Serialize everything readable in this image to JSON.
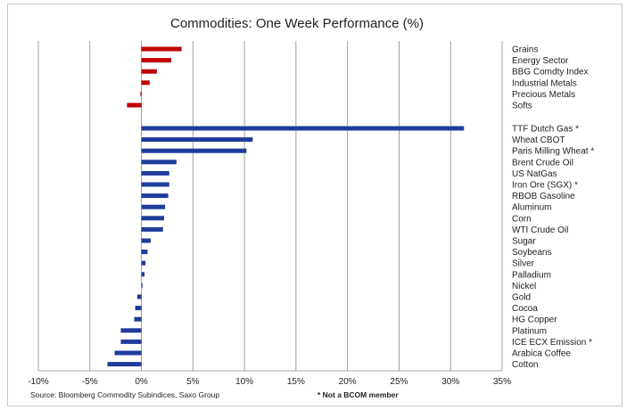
{
  "chart_data": {
    "type": "bar",
    "orientation": "horizontal",
    "title": "Commodities: One Week Performance (%)",
    "xlim": [
      -10,
      35
    ],
    "x_ticks": [
      "-10%",
      "-5%",
      "0%",
      "5%",
      "10%",
      "15%",
      "20%",
      "25%",
      "30%",
      "35%"
    ],
    "grid": true,
    "colors": {
      "sectors": "#c00000",
      "commodities": "#1f3c9a",
      "grid": "#8a8a8a"
    },
    "series": [
      {
        "name": "sectors",
        "categories": [
          "Grains",
          "Energy Sector",
          "BBG Comdty Index",
          "Industrial Metals",
          "Precious Metals",
          "Softs"
        ],
        "values": [
          3.9,
          2.9,
          1.5,
          0.8,
          -0.1,
          -1.4
        ]
      },
      {
        "name": "commodities",
        "categories": [
          "TTF Dutch Gas *",
          "Wheat CBOT",
          "Paris Milling Wheat *",
          "Brent Crude Oil",
          "US NatGas",
          "Iron Ore (SGX) *",
          "RBOB Gasoline",
          "Aluminum",
          "Corn",
          "WTI Crude Oil",
          "Sugar",
          "Soybeans",
          "Silver",
          "Palladium",
          "Nickel",
          "Gold",
          "Cocoa",
          "HG Copper",
          "Platinum",
          "ICE ECX Emission *",
          "Arabica Coffee",
          "Cotton"
        ],
        "values": [
          31.3,
          10.8,
          10.2,
          3.4,
          2.7,
          2.7,
          2.6,
          2.3,
          2.2,
          2.1,
          0.9,
          0.6,
          0.4,
          0.3,
          0.1,
          -0.4,
          -0.6,
          -0.7,
          -2.0,
          -2.0,
          -2.6,
          -3.3
        ]
      }
    ]
  },
  "footer": {
    "source": "Source: Bloomberg Commodity Subindices, Saxo Group",
    "note": "* Not a BCOM member"
  }
}
